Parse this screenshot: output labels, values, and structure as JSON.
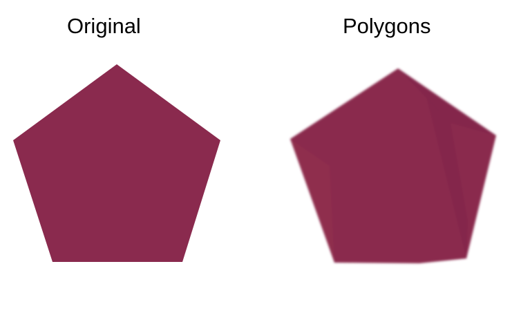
{
  "panels": {
    "original": {
      "title": "Original"
    },
    "polygons": {
      "title": "Polygons"
    }
  },
  "colors": {
    "shape_fill": "#8a2a4e",
    "shape_fill_dark": "#7f2549",
    "shape_fill_light": "#94304f",
    "background": "#ffffff",
    "text": "#000000"
  }
}
